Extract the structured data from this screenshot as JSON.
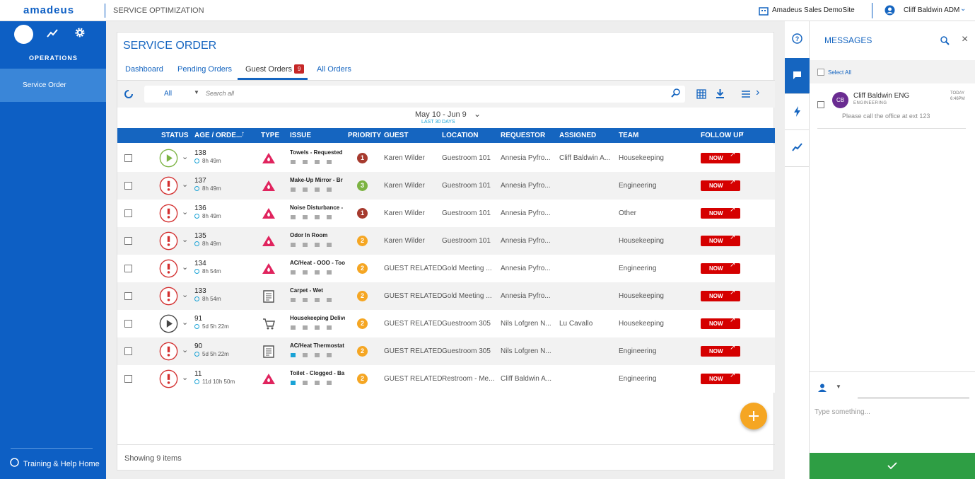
{
  "header": {
    "logo": "amadeus",
    "app": "SERVICE OPTIMIZATION",
    "site": "Amadeus Sales DemoSite",
    "user": "Cliff Baldwin ADM"
  },
  "sidebar": {
    "section": "OPERATIONS",
    "items": [
      "Service Order"
    ],
    "help": "Training & Help Home"
  },
  "main": {
    "title": "SERVICE ORDER",
    "tabs": [
      "Dashboard",
      "Pending Orders",
      "Guest Orders",
      "All Orders"
    ],
    "active_tab": 2,
    "badge": "9",
    "filter": "All",
    "search": "Search all",
    "date_range": "May 10 - Jun 9",
    "date_note": "LAST 30 DAYS",
    "footer": "Showing 9 items"
  },
  "table": {
    "columns": [
      "STATUS",
      "AGE / ORDE...",
      "TYPE",
      "ISSUE",
      "PRIORITY",
      "GUEST",
      "LOCATION",
      "REQUESTOR",
      "ASSIGNED",
      "TEAM",
      "FOLLOW UP"
    ],
    "rows": [
      {
        "id": 138,
        "age": "8h 49m",
        "issue": "Towels - Requested",
        "priority": 1,
        "guest": "Karen Wilder",
        "location": "Guestroom 101",
        "requestor": "Annesia Pyfro...",
        "assigned": "Cliff Baldwin A...",
        "team": "Housekeeping",
        "follow_up": "NOW",
        "status_icon": "play",
        "status_color": "#7cb342",
        "type_icon": "flame",
        "priority_color": "#a63a2e"
      },
      {
        "id": 137,
        "age": "8h 49m",
        "issue": "Make-Up Mirror - Br",
        "priority": 3,
        "guest": "Karen Wilder",
        "location": "Guestroom 101",
        "requestor": "Annesia Pyfro...",
        "team": "Engineering",
        "follow_up": "NOW",
        "status_icon": "alert",
        "status_color": "#d32f2f",
        "type_icon": "flame",
        "priority_color": "#7cb342"
      },
      {
        "id": 136,
        "age": "8h 49m",
        "issue": "Noise Disturbance -",
        "priority": 1,
        "guest": "Karen Wilder",
        "location": "Guestroom 101",
        "requestor": "Annesia Pyfro...",
        "team": "Other",
        "follow_up": "NOW",
        "status_icon": "alert",
        "status_color": "#d32f2f",
        "type_icon": "flame",
        "priority_color": "#a63a2e"
      },
      {
        "id": 135,
        "age": "8h 49m",
        "issue": "Odor In Room",
        "priority": 2,
        "guest": "Karen Wilder",
        "location": "Guestroom 101",
        "requestor": "Annesia Pyfro...",
        "team": "Housekeeping",
        "follow_up": "NOW",
        "status_icon": "alert",
        "status_color": "#d32f2f",
        "type_icon": "flame",
        "priority_color": "#f5a623"
      },
      {
        "id": 134,
        "age": "8h 54m",
        "issue": "AC/Heat - OOO - Too",
        "priority": 2,
        "guest": "GUEST RELATED",
        "location": "Gold Meeting ...",
        "requestor": "Annesia Pyfro...",
        "team": "Engineering",
        "follow_up": "NOW",
        "status_icon": "alert",
        "status_color": "#d32f2f",
        "type_icon": "flame",
        "priority_color": "#f5a623"
      },
      {
        "id": 133,
        "age": "8h 54m",
        "issue": "Carpet - Wet",
        "priority": 2,
        "guest": "GUEST RELATED",
        "location": "Gold Meeting ...",
        "requestor": "Annesia Pyfro...",
        "team": "Housekeeping",
        "follow_up": "NOW",
        "status_icon": "alert",
        "status_color": "#d32f2f",
        "type_icon": "doc",
        "priority_color": "#f5a623"
      },
      {
        "id": 91,
        "age": "5d 5h 22m",
        "issue": "Housekeeping Delive",
        "priority": 2,
        "guest": "GUEST RELATED",
        "location": "Guestroom 305",
        "requestor": "Nils Lofgren N...",
        "assigned": "Lu Cavallo",
        "team": "Housekeeping",
        "follow_up": "NOW",
        "status_icon": "play",
        "status_color": "#444444",
        "type_icon": "cart",
        "priority_color": "#f5a623"
      },
      {
        "id": 90,
        "age": "5d 5h 22m",
        "issue": "AC/Heat Thermostat",
        "priority": 2,
        "guest": "GUEST RELATED",
        "location": "Guestroom 305",
        "requestor": "Nils Lofgren N...",
        "team": "Engineering",
        "follow_up": "NOW",
        "status_icon": "alert",
        "status_color": "#d32f2f",
        "type_icon": "doc",
        "priority_color": "#f5a623"
      },
      {
        "id": 11,
        "age": "11d 10h 50m",
        "issue": "Toilet - Clogged - Ba",
        "priority": 2,
        "guest": "GUEST RELATED",
        "location": "Restroom - Me...",
        "requestor": "Cliff Baldwin A...",
        "team": "Engineering",
        "follow_up": "NOW",
        "status_icon": "alert",
        "status_color": "#d32f2f",
        "type_icon": "flame",
        "priority_color": "#f5a623"
      }
    ]
  },
  "messages": {
    "title": "MESSAGES",
    "select_all": "Select All",
    "items": [
      {
        "initials": "CB",
        "name": "Cliff Baldwin ENG",
        "dept": "ENGINEERING",
        "time_day": "TODAY",
        "time": "6:46PM",
        "text": "Please call the office at ext 123"
      }
    ],
    "placeholder": "Type something..."
  }
}
